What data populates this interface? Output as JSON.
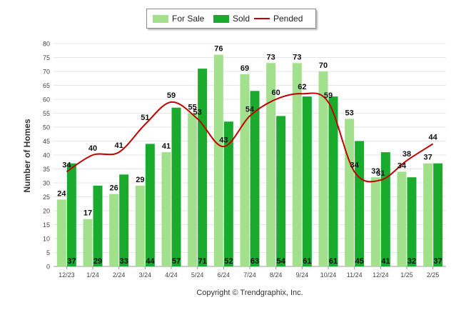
{
  "chart_data": {
    "type": "bar",
    "categories": [
      "12/23",
      "1/24",
      "2/24",
      "3/24",
      "4/24",
      "5/24",
      "6/24",
      "7/24",
      "8/24",
      "9/24",
      "10/24",
      "11/24",
      "12/24",
      "1/25",
      "2/25"
    ],
    "series": [
      {
        "name": "For Sale",
        "type": "bar",
        "color": "#a3e08e",
        "values": [
          24,
          17,
          26,
          29,
          41,
          55,
          76,
          69,
          73,
          73,
          70,
          53,
          32,
          34,
          37
        ]
      },
      {
        "name": "Sold",
        "type": "bar",
        "color": "#1aab2e",
        "values": [
          37,
          29,
          33,
          44,
          57,
          71,
          52,
          63,
          54,
          61,
          61,
          45,
          41,
          32,
          37
        ]
      },
      {
        "name": "Pended",
        "type": "line",
        "color": "#c00000",
        "values": [
          34,
          40,
          41,
          51,
          59,
          53,
          43,
          54,
          60,
          62,
          59,
          34,
          31,
          38,
          44
        ]
      }
    ],
    "ylabel": "Number of Homes",
    "xlabel": "",
    "ylim": [
      0,
      80
    ],
    "yticks": [
      0,
      5,
      10,
      15,
      20,
      25,
      30,
      35,
      40,
      45,
      50,
      55,
      60,
      65,
      70,
      75,
      80
    ],
    "grid": true,
    "legend": "top-center"
  },
  "legend": {
    "for_sale": "For Sale",
    "sold": "Sold",
    "pended": "Pended"
  },
  "footer": {
    "copyright": "Copyright © Trendgraphix, Inc."
  },
  "colors": {
    "for_sale": "#a3e08e",
    "sold": "#1aab2e",
    "pended": "#c00000"
  }
}
